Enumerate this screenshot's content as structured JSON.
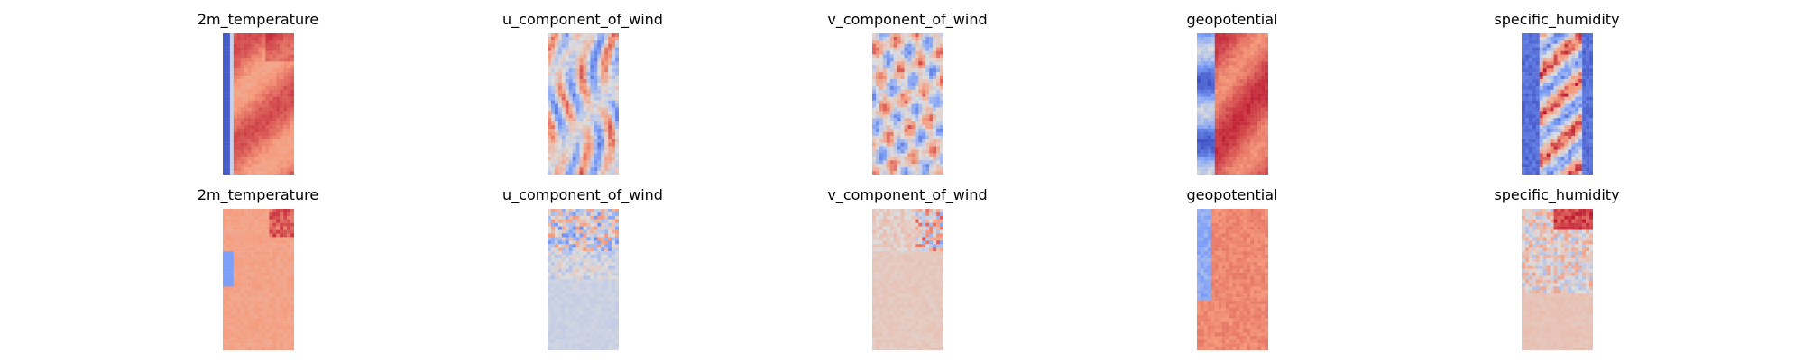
{
  "chart_data": {
    "type": "heatmap",
    "colormap": "coolwarm",
    "axes_visible": false,
    "columns": [
      "2m_temperature",
      "u_component_of_wind",
      "v_component_of_wind",
      "geopotential",
      "specific_humidity"
    ],
    "rows": [
      {
        "panels": [
          {
            "title": "2m_temperature",
            "field": "temperature_full"
          },
          {
            "title": "u_component_of_wind",
            "field": "u_wind_full"
          },
          {
            "title": "v_component_of_wind",
            "field": "v_wind_full"
          },
          {
            "title": "geopotential",
            "field": "geopotential_full"
          },
          {
            "title": "specific_humidity",
            "field": "humidity_full"
          }
        ]
      },
      {
        "panels": [
          {
            "title": "2m_temperature",
            "field": "temperature_residual"
          },
          {
            "title": "u_component_of_wind",
            "field": "u_wind_residual"
          },
          {
            "title": "v_component_of_wind",
            "field": "v_wind_residual"
          },
          {
            "title": "geopotential",
            "field": "geopotential_residual"
          },
          {
            "title": "specific_humidity",
            "field": "humidity_residual"
          }
        ]
      }
    ]
  },
  "colors": {
    "cold": "#3b4cc0",
    "neutral": "#dddddd",
    "warm": "#b40426"
  }
}
